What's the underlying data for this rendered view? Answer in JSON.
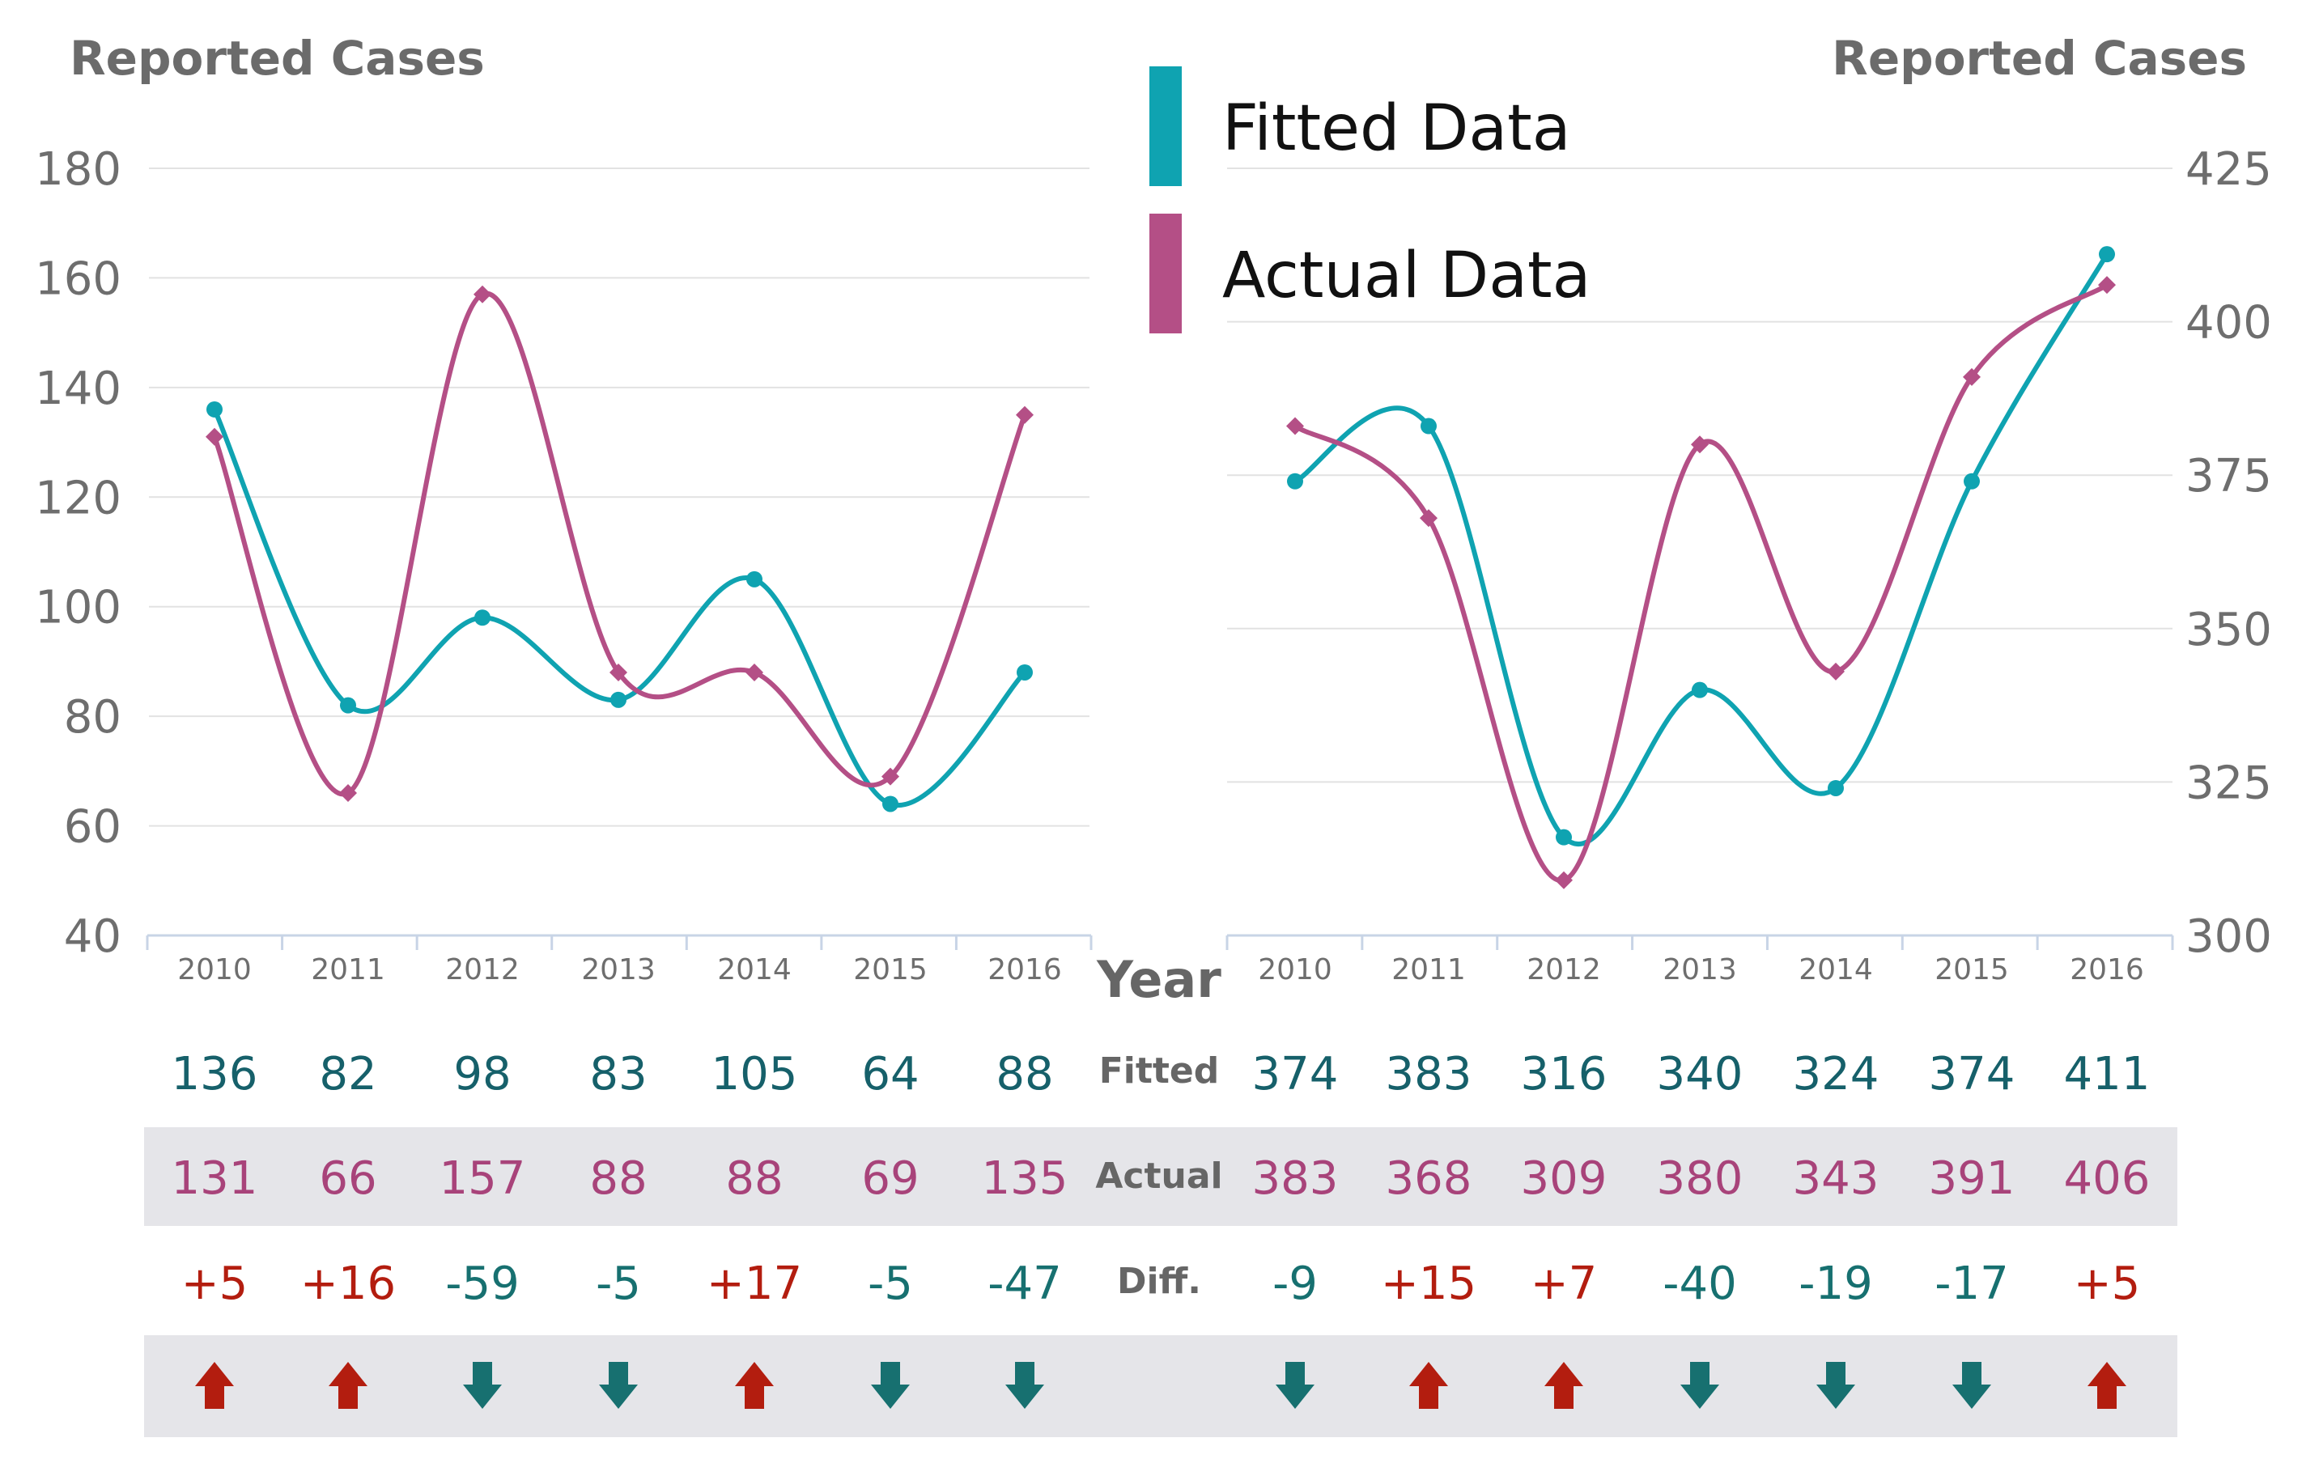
{
  "colors": {
    "fitted": "#0fa3b1",
    "actual": "#b44f86",
    "fitted_text": "#16606a",
    "actual_text": "#a8437a",
    "up": "#b31d0f",
    "down": "#177070",
    "band": "#e5e5e9",
    "grid": "#e2e2e2"
  },
  "legend": {
    "fitted_label": "Fitted Data",
    "actual_label": "Actual Data"
  },
  "table_labels": {
    "year": "Year",
    "fitted": "Fitted",
    "actual": "Actual",
    "diff": "Diff."
  },
  "chart_data": [
    {
      "type": "line",
      "ylabel": "Reported Cases",
      "yaxis_side": "left",
      "ylim": [
        40,
        180
      ],
      "yticks": [
        "40",
        "60",
        "80",
        "100",
        "120",
        "140",
        "160",
        "180"
      ],
      "categories": [
        "2010",
        "2011",
        "2012",
        "2013",
        "2014",
        "2015",
        "2016"
      ],
      "series": [
        {
          "name": "Fitted Data",
          "values": [
            136,
            82,
            98,
            83,
            105,
            64,
            88
          ]
        },
        {
          "name": "Actual Data",
          "values": [
            131,
            66,
            157,
            88,
            88,
            69,
            135
          ]
        }
      ],
      "table": {
        "fitted": [
          "136",
          "82",
          "98",
          "83",
          "105",
          "64",
          "88"
        ],
        "actual": [
          "131",
          "66",
          "157",
          "88",
          "88",
          "69",
          "135"
        ],
        "diff": [
          "+5",
          "+16",
          "-59",
          "-5",
          "+17",
          "-5",
          "-47"
        ],
        "trend": [
          "up",
          "up",
          "down",
          "down",
          "up",
          "down",
          "down"
        ]
      }
    },
    {
      "type": "line",
      "ylabel": "Reported Cases",
      "yaxis_side": "right",
      "ylim": [
        300,
        425
      ],
      "yticks": [
        "300",
        "325",
        "350",
        "375",
        "400",
        "425"
      ],
      "categories": [
        "2010",
        "2011",
        "2012",
        "2013",
        "2014",
        "2015",
        "2016"
      ],
      "series": [
        {
          "name": "Fitted Data",
          "values": [
            374,
            383,
            316,
            340,
            324,
            374,
            411
          ]
        },
        {
          "name": "Actual Data",
          "values": [
            383,
            368,
            309,
            380,
            343,
            391,
            406
          ]
        }
      ],
      "table": {
        "fitted": [
          "374",
          "383",
          "316",
          "340",
          "324",
          "374",
          "411"
        ],
        "actual": [
          "383",
          "368",
          "309",
          "380",
          "343",
          "391",
          "406"
        ],
        "diff": [
          "-9",
          "+15",
          "+7",
          "-40",
          "-19",
          "-17",
          "+5"
        ],
        "trend": [
          "down",
          "up",
          "up",
          "down",
          "down",
          "down",
          "up"
        ]
      }
    }
  ]
}
